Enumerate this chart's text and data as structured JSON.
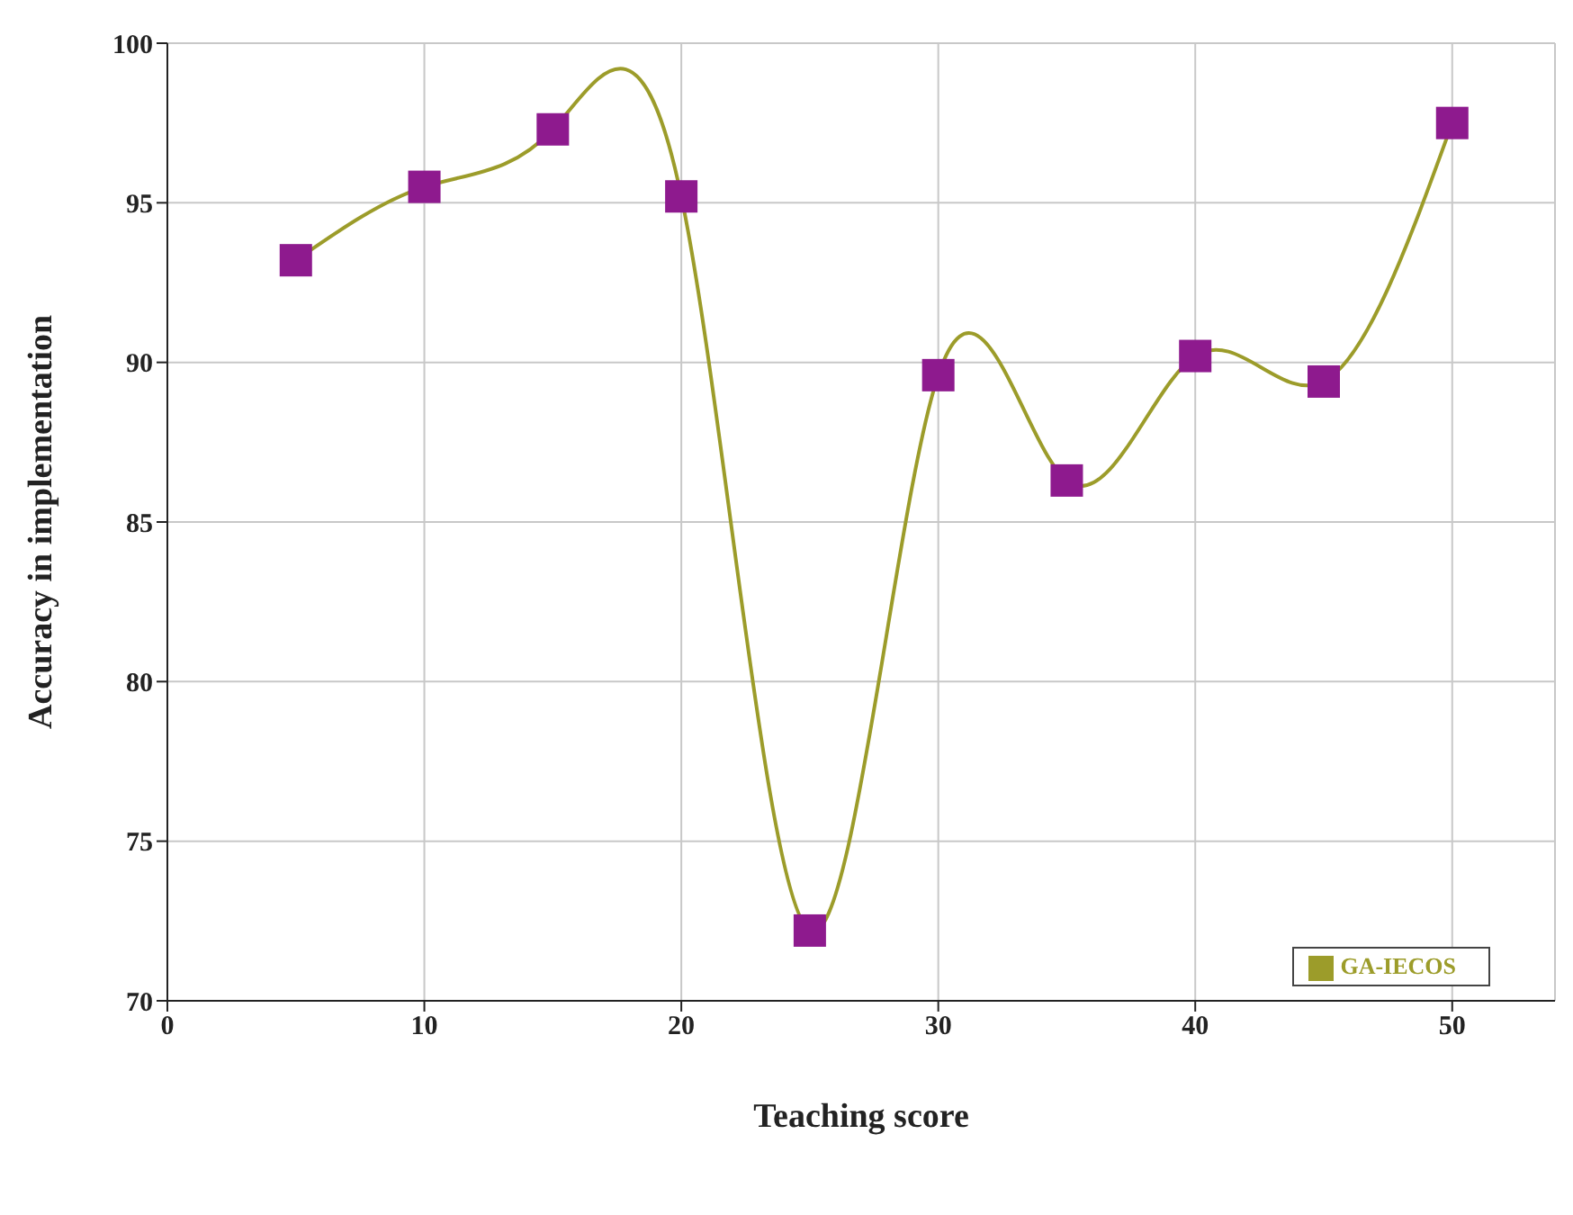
{
  "chart_data": {
    "type": "line",
    "xlabel": "Teaching score",
    "ylabel": "Accuracy in implementation",
    "x": [
      5,
      10,
      15,
      20,
      25,
      30,
      35,
      40,
      45,
      50
    ],
    "series": [
      {
        "name": "GA-IECOS",
        "color": "#9c9c2a",
        "colors": [
          "#8e1a8e",
          "#8e1a8e",
          "#8e1a8e",
          "#8e1a8e",
          "#8e1a8e",
          "#8e1a8e",
          "#8e1a8e",
          "#8e1a8e",
          "#8e1a8e",
          "#8e1a8e"
        ],
        "values": [
          93.2,
          95.5,
          97.3,
          95.2,
          72.2,
          89.6,
          86.3,
          90.2,
          89.4,
          97.5
        ]
      }
    ],
    "xlim": [
      0,
      54
    ],
    "xticks": [
      0,
      10,
      20,
      30,
      40,
      50
    ],
    "ylim": [
      70,
      100
    ],
    "yticks": [
      70,
      75,
      80,
      85,
      90,
      95,
      100
    ],
    "grid": true,
    "legend": "bottom right",
    "marker": "square",
    "line_style": "solid"
  }
}
